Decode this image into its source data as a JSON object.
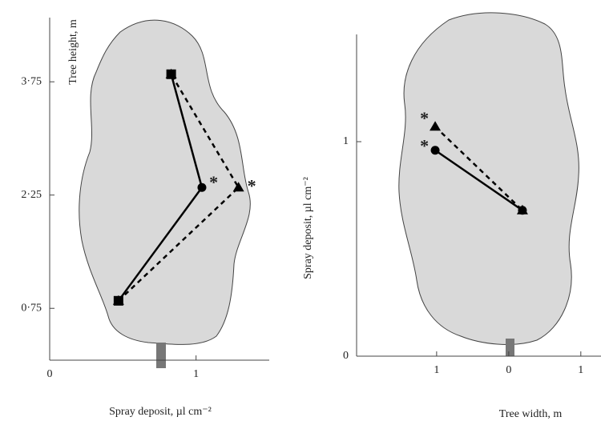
{
  "chart_data": [
    {
      "type": "line",
      "xlabel": "Spray deposit, µl cm⁻²",
      "ylabel": "Tree height, m",
      "xlim": [
        0,
        1.5
      ],
      "ylim": [
        0,
        4.6
      ],
      "xticks": [
        0,
        1
      ],
      "yticks": [
        {
          "value": 0.75,
          "label": "0·75"
        },
        {
          "value": 2.25,
          "label": "2·25"
        },
        {
          "value": 3.75,
          "label": "3·75"
        }
      ],
      "series": [
        {
          "color": "#000000",
          "dash": false,
          "markers": [
            "square",
            "circle",
            "square"
          ],
          "x": [
            0.47,
            1.04,
            0.83
          ],
          "y": [
            0.85,
            2.35,
            3.85
          ]
        },
        {
          "color": "#000000",
          "dash": true,
          "markers": [
            "triangle",
            "triangle",
            "triangle"
          ],
          "x": [
            0.47,
            1.29,
            0.83
          ],
          "y": [
            0.85,
            2.35,
            3.85
          ]
        }
      ],
      "annotations": [
        {
          "text": "*",
          "x": 1.12,
          "y": 2.45
        },
        {
          "text": "*",
          "x": 1.38,
          "y": 2.4
        }
      ]
    },
    {
      "type": "line",
      "xlabel": "Tree width, m",
      "ylabel": "Spray deposit, µl cm⁻²",
      "xlim": [
        -2.11,
        1.28
      ],
      "ylim": [
        0,
        1.5
      ],
      "xticks": [
        {
          "value": -1,
          "label": "1"
        },
        0,
        1
      ],
      "yticks": [
        0,
        1
      ],
      "series": [
        {
          "color": "#000000",
          "dash": false,
          "markers": [
            "circle",
            "circle"
          ],
          "x": [
            -1.02,
            0.19
          ],
          "y": [
            0.96,
            0.68
          ]
        },
        {
          "color": "#000000",
          "dash": true,
          "markers": [
            "triangle",
            "triangle"
          ],
          "x": [
            -1.02,
            0.19
          ],
          "y": [
            1.07,
            0.68
          ]
        }
      ],
      "annotations": [
        {
          "text": "*",
          "x": -1.17,
          "y": 1.12
        },
        {
          "text": "*",
          "x": -1.17,
          "y": 0.99
        }
      ]
    }
  ]
}
